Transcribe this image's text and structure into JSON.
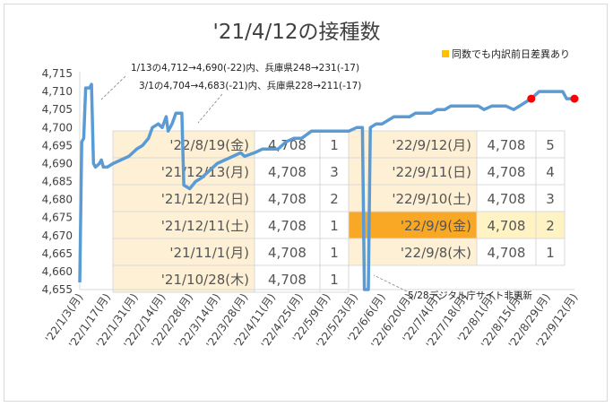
{
  "chart_data": {
    "type": "line",
    "title": "'21/4/12の接種数",
    "ylim": [
      4655,
      4715
    ],
    "y_ticks": [
      "4,655",
      "4,660",
      "4,665",
      "4,670",
      "4,675",
      "4,680",
      "4,685",
      "4,690",
      "4,695",
      "4,700",
      "4,705",
      "4,710",
      "4,715"
    ],
    "x_ticks": [
      "'22/1/3(月)",
      "'22/1/17(月)",
      "'22/1/31(月)",
      "'22/2/14(月)",
      "'22/2/28(月)",
      "'22/3/14(月)",
      "'22/3/28(月)",
      "'22/4/11(月)",
      "'22/4/25(月)",
      "'22/5/9(月)",
      "'22/5/23(月)",
      "'22/6/6(月)",
      "'22/6/20(月)",
      "'22/7/4(月)",
      "'22/7/18(月)",
      "'22/8/1(月)",
      "'22/8/15(月)",
      "'22/8/29(月)",
      "'22/9/12(月)"
    ],
    "series": [
      {
        "color": "#5b9bd5",
        "points": [
          [
            "2022-01-03",
            4657
          ],
          [
            "2022-01-04",
            4696
          ],
          [
            "2022-01-05",
            4697
          ],
          [
            "2022-01-06",
            4711
          ],
          [
            "2022-01-08",
            4711
          ],
          [
            "2022-01-09",
            4712
          ],
          [
            "2022-01-10",
            4690
          ],
          [
            "2022-01-11",
            4689
          ],
          [
            "2022-01-13",
            4690
          ],
          [
            "2022-01-14",
            4691
          ],
          [
            "2022-01-15",
            4689
          ],
          [
            "2022-01-17",
            4689
          ],
          [
            "2022-01-20",
            4690
          ],
          [
            "2022-01-24",
            4691
          ],
          [
            "2022-01-28",
            4692
          ],
          [
            "2022-02-01",
            4694
          ],
          [
            "2022-02-04",
            4695
          ],
          [
            "2022-02-07",
            4697
          ],
          [
            "2022-02-09",
            4700
          ],
          [
            "2022-02-12",
            4701
          ],
          [
            "2022-02-14",
            4700
          ],
          [
            "2022-02-16",
            4703
          ],
          [
            "2022-02-17",
            4699
          ],
          [
            "2022-02-19",
            4701
          ],
          [
            "2022-02-21",
            4704
          ],
          [
            "2022-02-24",
            4704
          ],
          [
            "2022-02-25",
            4684
          ],
          [
            "2022-02-28",
            4683
          ],
          [
            "2022-03-03",
            4685
          ],
          [
            "2022-03-06",
            4686
          ],
          [
            "2022-03-10",
            4688
          ],
          [
            "2022-03-14",
            4690
          ],
          [
            "2022-03-18",
            4691
          ],
          [
            "2022-03-22",
            4692
          ],
          [
            "2022-03-26",
            4693
          ],
          [
            "2022-03-28",
            4692
          ],
          [
            "2022-04-02",
            4693
          ],
          [
            "2022-04-06",
            4694
          ],
          [
            "2022-04-11",
            4694
          ],
          [
            "2022-04-14",
            4694
          ],
          [
            "2022-04-18",
            4696
          ],
          [
            "2022-04-22",
            4697
          ],
          [
            "2022-04-26",
            4697
          ],
          [
            "2022-05-01",
            4699
          ],
          [
            "2022-05-05",
            4699
          ],
          [
            "2022-05-09",
            4699
          ],
          [
            "2022-05-13",
            4699
          ],
          [
            "2022-05-17",
            4699
          ],
          [
            "2022-05-20",
            4699
          ],
          [
            "2022-05-24",
            4700
          ],
          [
            "2022-05-26",
            4700
          ],
          [
            "2022-05-27",
            4700
          ],
          [
            "2022-05-28",
            4655
          ],
          [
            "2022-05-30",
            4655
          ],
          [
            "2022-05-31",
            4700
          ],
          [
            "2022-06-03",
            4701
          ],
          [
            "2022-06-06",
            4701
          ],
          [
            "2022-06-09",
            4702
          ],
          [
            "2022-06-12",
            4703
          ],
          [
            "2022-06-15",
            4703
          ],
          [
            "2022-06-18",
            4703
          ],
          [
            "2022-06-20",
            4703
          ],
          [
            "2022-06-23",
            4704
          ],
          [
            "2022-06-27",
            4704
          ],
          [
            "2022-07-01",
            4704
          ],
          [
            "2022-07-04",
            4705
          ],
          [
            "2022-07-08",
            4705
          ],
          [
            "2022-07-11",
            4706
          ],
          [
            "2022-07-15",
            4706
          ],
          [
            "2022-07-18",
            4706
          ],
          [
            "2022-07-21",
            4706
          ],
          [
            "2022-07-25",
            4706
          ],
          [
            "2022-07-28",
            4705
          ],
          [
            "2022-08-01",
            4706
          ],
          [
            "2022-08-05",
            4706
          ],
          [
            "2022-08-08",
            4706
          ],
          [
            "2022-08-12",
            4705
          ],
          [
            "2022-08-15",
            4706
          ],
          [
            "2022-08-18",
            4707
          ],
          [
            "2022-08-21",
            4708
          ],
          [
            "2022-08-25",
            4710
          ],
          [
            "2022-08-29",
            4710
          ],
          [
            "2022-09-01",
            4710
          ],
          [
            "2022-09-04",
            4710
          ],
          [
            "2022-09-06",
            4710
          ],
          [
            "2022-09-08",
            4708
          ],
          [
            "2022-09-12",
            4708
          ]
        ]
      }
    ],
    "markers": [
      {
        "x": "2022-08-21",
        "y": 4708,
        "color": "#ff0000"
      },
      {
        "x": "2022-09-12",
        "y": 4708,
        "color": "#ff0000"
      }
    ],
    "legend": {
      "label": "同数でも内訳前日差異あり",
      "color": "#ffc000",
      "position": "top-right"
    },
    "annotations": [
      {
        "text": "1/13の4,712→4,690(-22)内、兵庫県248→231(-17)"
      },
      {
        "text": "3/1の4,704→4,683(-21)内、兵庫県228→211(-17)"
      },
      {
        "text": "5/28デジタル庁サイト非更新"
      }
    ],
    "table_left": [
      {
        "date": "'22/8/19(金)",
        "value": "4,708",
        "count": "1"
      },
      {
        "date": "'21/12/13(月)",
        "value": "4,708",
        "count": "3"
      },
      {
        "date": "'21/12/12(日)",
        "value": "4,708",
        "count": "2"
      },
      {
        "date": "'21/12/11(土)",
        "value": "4,708",
        "count": "1"
      },
      {
        "date": "'21/11/1(月)",
        "value": "4,708",
        "count": "1"
      },
      {
        "date": "'21/10/28(木)",
        "value": "4,708",
        "count": "1"
      }
    ],
    "table_right": [
      {
        "date": "'22/9/12(月)",
        "value": "4,708",
        "count": "5",
        "highlight": false
      },
      {
        "date": "'22/9/11(日)",
        "value": "4,708",
        "count": "4",
        "highlight": false
      },
      {
        "date": "'22/9/10(土)",
        "value": "4,708",
        "count": "3",
        "highlight": false
      },
      {
        "date": "'22/9/9(金)",
        "value": "4,708",
        "count": "2",
        "highlight": true
      },
      {
        "date": "'22/9/8(木)",
        "value": "4,708",
        "count": "1",
        "highlight": false
      }
    ],
    "grid": false
  }
}
